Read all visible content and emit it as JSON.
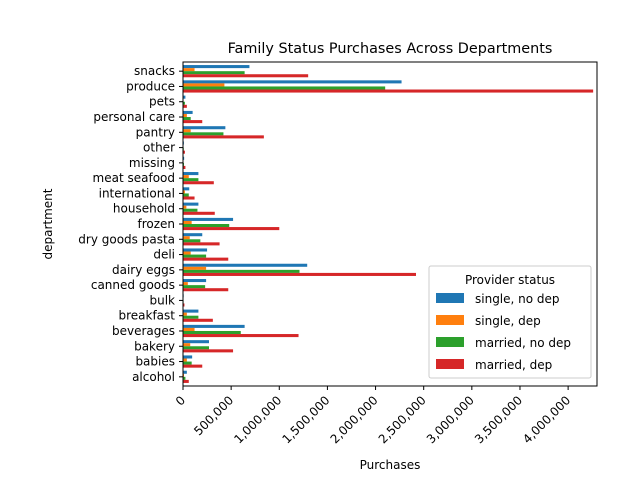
{
  "chart_data": {
    "type": "bar",
    "orientation": "horizontal",
    "title": "Family Status Purchases Across Departments",
    "xlabel": "Purchases",
    "ylabel": "department",
    "xlim": [
      0,
      4300000
    ],
    "xticks": [
      0,
      500000,
      1000000,
      1500000,
      2000000,
      2500000,
      3000000,
      3500000,
      4000000
    ],
    "xtick_labels": [
      "0",
      "500,000",
      "1,000,000",
      "1,500,000",
      "2,000,000",
      "2,500,000",
      "3,000,000",
      "3,500,000",
      "4,000,000"
    ],
    "grid": false,
    "legend": {
      "title": "Provider status",
      "placement": "lower right"
    },
    "categories": [
      "alcohol",
      "babies",
      "bakery",
      "beverages",
      "breakfast",
      "bulk",
      "canned goods",
      "dairy eggs",
      "deli",
      "dry goods pasta",
      "frozen",
      "household",
      "international",
      "meat seafood",
      "missing",
      "other",
      "pantry",
      "personal care",
      "pets",
      "produce",
      "snacks"
    ],
    "series": [
      {
        "name": "single, no dep",
        "color": "#1f77b4",
        "values": [
          40000,
          95000,
          270000,
          640000,
          160000,
          7000,
          240000,
          1290000,
          250000,
          200000,
          520000,
          160000,
          65000,
          160000,
          12000,
          9000,
          440000,
          100000,
          25000,
          2270000,
          690000
        ]
      },
      {
        "name": "single, dep",
        "color": "#ff7f0e",
        "values": [
          10000,
          40000,
          75000,
          120000,
          40000,
          2000,
          50000,
          240000,
          80000,
          70000,
          90000,
          35000,
          20000,
          60000,
          3000,
          2000,
          80000,
          40000,
          5000,
          430000,
          120000
        ]
      },
      {
        "name": "married, no dep",
        "color": "#2ca02c",
        "values": [
          25000,
          90000,
          270000,
          600000,
          160000,
          6000,
          230000,
          1210000,
          240000,
          180000,
          480000,
          150000,
          60000,
          160000,
          10000,
          8000,
          420000,
          80000,
          20000,
          2100000,
          640000
        ]
      },
      {
        "name": "married, dep",
        "color": "#d62728",
        "values": [
          60000,
          200000,
          520000,
          1200000,
          310000,
          15000,
          470000,
          2420000,
          470000,
          380000,
          1000000,
          330000,
          120000,
          320000,
          25000,
          20000,
          840000,
          200000,
          40000,
          4260000,
          1300000
        ]
      }
    ]
  }
}
